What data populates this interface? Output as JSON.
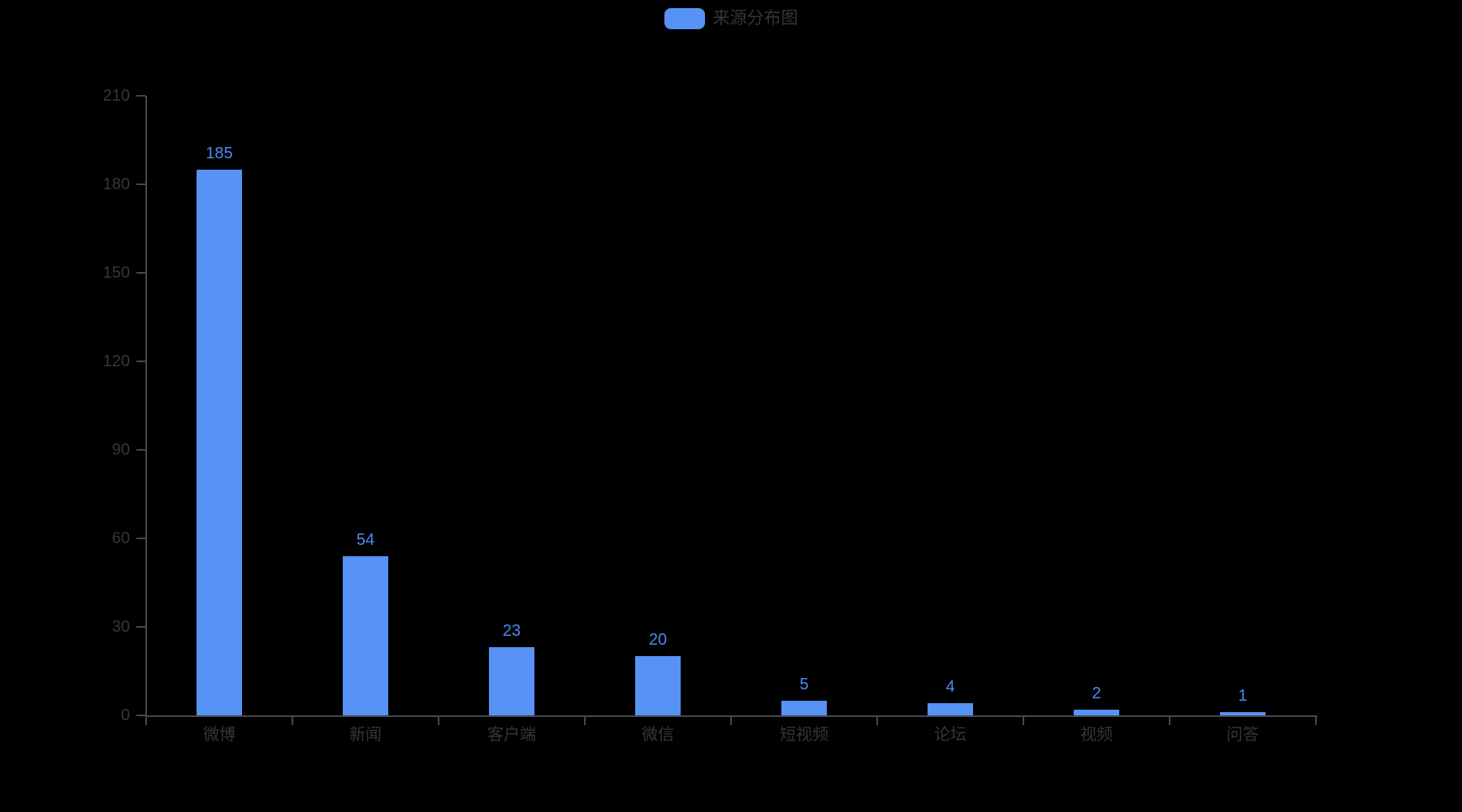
{
  "page": {
    "background": "#000000"
  },
  "legend": {
    "label": "来源分布图",
    "swatch_color": "#5792F5"
  },
  "chart_data": {
    "type": "bar",
    "title": "来源分布图",
    "series_name": "来源分布图",
    "categories": [
      "微博",
      "新闻",
      "客户端",
      "微信",
      "短视频",
      "论坛",
      "视频",
      "问答"
    ],
    "values": [
      185,
      54,
      23,
      20,
      5,
      4,
      2,
      1
    ],
    "value_labels": [
      "185",
      "54",
      "23",
      "20",
      "5",
      "4",
      "2",
      "1"
    ],
    "xlabel": "",
    "ylabel": "",
    "ylim": [
      0,
      210
    ],
    "y_ticks": [
      0,
      30,
      60,
      90,
      120,
      150,
      180,
      210
    ],
    "grid": "off",
    "legend_position": "top-center",
    "bar_color": "#5792F5",
    "value_label_color": "#4C8BF2",
    "axis_text_color": "#33363b",
    "axis_line_color": "#46484c",
    "background_color": "#000000"
  }
}
